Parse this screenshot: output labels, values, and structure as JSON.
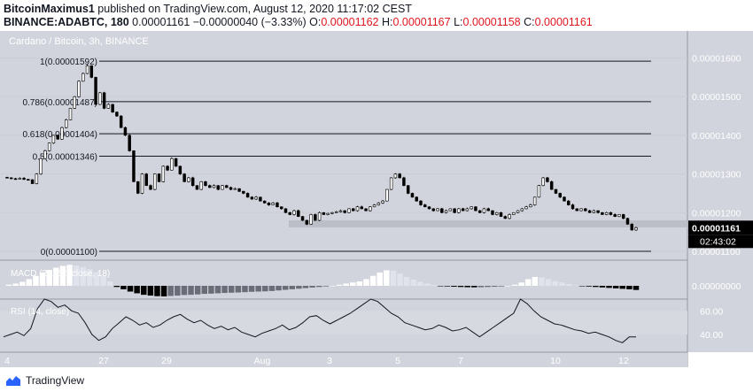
{
  "header": {
    "author": "BitcoinMaximus1",
    "published": "published on TradingView.com, August 12, 2020 11:17:02 CEST",
    "symbol": "BINANCE:ADABTC, 180",
    "last": "0.00001161",
    "change": "−0.00000040 (−3.33%)",
    "o_label": "O:",
    "o_value": "0.00001162",
    "h_label": "H:",
    "h_value": "0.00001167",
    "l_label": "L:",
    "l_value": "0.00001158",
    "c_label": "C:",
    "c_value": "0.00001161"
  },
  "footer": {
    "brand": "TradingView"
  },
  "colors": {
    "background": "#d1d4dc",
    "up": "#ffffff",
    "down": "#000000",
    "support_zone": "#b8bbc3",
    "red_text": "#e0161e"
  },
  "chart_data": {
    "type": "candlestick",
    "title": "Cardano / Bitcoin, 3h, BINANCE",
    "y_ticks": [
      "0.00001600",
      "0.00001500",
      "0.00001400",
      "0.00001300",
      "0.00001200",
      "0.00001100"
    ],
    "ylim": [
      1.077e-05,
      1.67e-05
    ],
    "price_label": "0.00001161",
    "countdown_label": "02:43:02",
    "x_ticks": [
      "4",
      "27",
      "29",
      "Aug",
      "3",
      "5",
      "7",
      "10",
      "12"
    ],
    "fib_levels": [
      {
        "label": "1(0.00001592)",
        "value": 1.592e-05
      },
      {
        "label": "0.786(0.00001487)",
        "value": 1.487e-05
      },
      {
        "label": "0.618(0.00001404)",
        "value": 1.404e-05
      },
      {
        "label": "0.5(0.00001346)",
        "value": 1.346e-05
      },
      {
        "label": "0(0.00001100)",
        "value": 1.1e-05
      }
    ],
    "support_zone": [
      1.162e-05,
      1.18e-05
    ],
    "close_series": [
      1.29e-05,
      1.288e-05,
      1.287e-05,
      1.289e-05,
      1.286e-05,
      1.285e-05,
      1.275e-05,
      1.3e-05,
      1.34e-05,
      1.36e-05,
      1.38e-05,
      1.4e-05,
      1.39e-05,
      1.42e-05,
      1.44e-05,
      1.47e-05,
      1.5e-05,
      1.54e-05,
      1.56e-05,
      1.58e-05,
      1.55e-05,
      1.48e-05,
      1.51e-05,
      1.47e-05,
      1.48e-05,
      1.46e-05,
      1.45e-05,
      1.42e-05,
      1.4e-05,
      1.36e-05,
      1.28e-05,
      1.25e-05,
      1.3e-05,
      1.27e-05,
      1.26e-05,
      1.3e-05,
      1.28e-05,
      1.32e-05,
      1.31e-05,
      1.34e-05,
      1.32e-05,
      1.3e-05,
      1.28e-05,
      1.29e-05,
      1.27e-05,
      1.26e-05,
      1.28e-05,
      1.27e-05,
      1.265e-05,
      1.27e-05,
      1.26e-05,
      1.27e-05,
      1.265e-05,
      1.26e-05,
      1.262e-05,
      1.255e-05,
      1.25e-05,
      1.24e-05,
      1.235e-05,
      1.24e-05,
      1.23e-05,
      1.225e-05,
      1.22e-05,
      1.225e-05,
      1.215e-05,
      1.21e-05,
      1.2e-05,
      1.195e-05,
      1.205e-05,
      1.19e-05,
      1.18e-05,
      1.17e-05,
      1.195e-05,
      1.18e-05,
      1.2e-05,
      1.195e-05,
      1.198e-05,
      1.2e-05,
      1.202e-05,
      1.205e-05,
      1.2e-05,
      1.21e-05,
      1.205e-05,
      1.215e-05,
      1.21e-05,
      1.205e-05,
      1.215e-05,
      1.22e-05,
      1.225e-05,
      1.23e-05,
      1.26e-05,
      1.29e-05,
      1.3e-05,
      1.29e-05,
      1.27e-05,
      1.25e-05,
      1.24e-05,
      1.23e-05,
      1.22e-05,
      1.215e-05,
      1.21e-05,
      1.205e-05,
      1.21e-05,
      1.2e-05,
      1.205e-05,
      1.21e-05,
      1.2e-05,
      1.21e-05,
      1.205e-05,
      1.21e-05,
      1.215e-05,
      1.205e-05,
      1.2e-05,
      1.21e-05,
      1.205e-05,
      1.195e-05,
      1.2e-05,
      1.19e-05,
      1.185e-05,
      1.195e-05,
      1.2e-05,
      1.205e-05,
      1.21e-05,
      1.215e-05,
      1.22e-05,
      1.24e-05,
      1.27e-05,
      1.29e-05,
      1.28e-05,
      1.26e-05,
      1.25e-05,
      1.24e-05,
      1.23e-05,
      1.22e-05,
      1.21e-05,
      1.205e-05,
      1.21e-05,
      1.205e-05,
      1.2e-05,
      1.205e-05,
      1.2e-05,
      1.195e-05,
      1.2e-05,
      1.195e-05,
      1.19e-05,
      1.195e-05,
      1.185e-05,
      1.17e-05,
      1.155e-05,
      1.161e-05
    ],
    "macd": {
      "title": "MACD (24, 52, close, 18)",
      "y_tick": "0.00000000",
      "histogram": [
        0.05,
        0.1,
        0.18,
        0.3,
        0.45,
        0.6,
        0.72,
        0.82,
        0.9,
        0.95,
        0.92,
        0.85,
        0.75,
        0.62,
        0.45,
        0.2,
        -0.1,
        -0.3,
        -0.5,
        -0.65,
        -0.78,
        -0.85,
        -0.9,
        -0.92,
        -0.88,
        -0.85,
        -0.8,
        -0.78,
        -0.75,
        -0.7,
        -0.68,
        -0.65,
        -0.62,
        -0.6,
        -0.58,
        -0.55,
        -0.52,
        -0.5,
        -0.48,
        -0.45,
        -0.4,
        -0.35,
        -0.3,
        -0.25,
        -0.2,
        -0.15,
        -0.1,
        -0.05,
        0.0,
        0.05,
        0.1,
        0.15,
        0.2,
        0.3,
        0.45,
        0.6,
        0.7,
        0.68,
        0.55,
        0.4,
        0.28,
        0.18,
        0.1,
        0.04,
        -0.02,
        -0.05,
        -0.08,
        -0.1,
        -0.12,
        -0.13,
        -0.12,
        -0.1,
        -0.08,
        -0.05,
        0.0,
        0.05,
        0.15,
        0.3,
        0.4,
        0.38,
        0.3,
        0.22,
        0.15,
        0.08,
        0.02,
        -0.03,
        -0.06,
        -0.1,
        -0.14,
        -0.18,
        -0.22,
        -0.26,
        -0.3,
        -0.36
      ]
    },
    "rsi": {
      "title": "RSI (14, close)",
      "y_ticks": [
        "60.00",
        "40.00"
      ],
      "ylim": [
        25,
        70
      ],
      "values": [
        38,
        40,
        42,
        39,
        45,
        62,
        70,
        68,
        63,
        65,
        60,
        58,
        50,
        40,
        35,
        38,
        45,
        50,
        55,
        52,
        48,
        50,
        46,
        48,
        52,
        55,
        57,
        53,
        50,
        52,
        48,
        45,
        47,
        44,
        46,
        42,
        40,
        38,
        41,
        43,
        45,
        48,
        44,
        46,
        50,
        55,
        56,
        52,
        49,
        52,
        55,
        58,
        62,
        66,
        70,
        68,
        63,
        58,
        55,
        50,
        48,
        46,
        44,
        45,
        48,
        46,
        43,
        44,
        46,
        42,
        38,
        42,
        46,
        50,
        54,
        58,
        70,
        66,
        60,
        55,
        52,
        49,
        48,
        46,
        44,
        43,
        41,
        42,
        40,
        38,
        35,
        33,
        38,
        38
      ]
    }
  }
}
